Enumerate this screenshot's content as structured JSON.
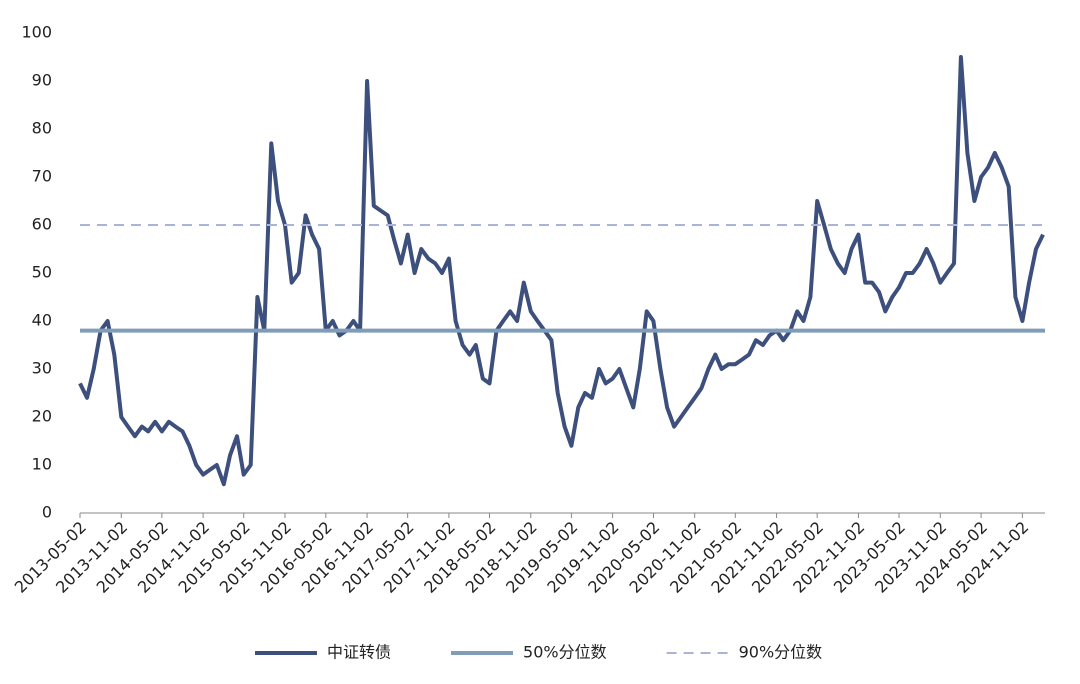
{
  "chart_data": {
    "type": "line",
    "x": [
      "2013-05-02",
      "2013-06-02",
      "2013-07-02",
      "2013-08-02",
      "2013-09-02",
      "2013-10-02",
      "2013-11-02",
      "2013-12-02",
      "2014-01-02",
      "2014-02-02",
      "2014-03-02",
      "2014-04-02",
      "2014-05-02",
      "2014-06-02",
      "2014-07-02",
      "2014-08-02",
      "2014-09-02",
      "2014-10-02",
      "2014-11-02",
      "2014-12-02",
      "2015-01-02",
      "2015-02-02",
      "2015-03-02",
      "2015-04-02",
      "2015-05-02",
      "2015-06-02",
      "2015-07-02",
      "2015-08-02",
      "2015-09-02",
      "2015-10-02",
      "2015-11-02",
      "2015-12-02",
      "2016-01-02",
      "2016-02-02",
      "2016-03-02",
      "2016-04-02",
      "2016-05-02",
      "2016-06-02",
      "2016-07-02",
      "2016-08-02",
      "2016-09-02",
      "2016-10-02",
      "2016-11-02",
      "2016-12-02",
      "2017-01-02",
      "2017-02-02",
      "2017-03-02",
      "2017-04-02",
      "2017-05-02",
      "2017-06-02",
      "2017-07-02",
      "2017-08-02",
      "2017-09-02",
      "2017-10-02",
      "2017-11-02",
      "2017-12-02",
      "2018-01-02",
      "2018-02-02",
      "2018-03-02",
      "2018-04-02",
      "2018-05-02",
      "2018-06-02",
      "2018-07-02",
      "2018-08-02",
      "2018-09-02",
      "2018-10-02",
      "2018-11-02",
      "2018-12-02",
      "2019-01-02",
      "2019-02-02",
      "2019-03-02",
      "2019-04-02",
      "2019-05-02",
      "2019-06-02",
      "2019-07-02",
      "2019-08-02",
      "2019-09-02",
      "2019-10-02",
      "2019-11-02",
      "2019-12-02",
      "2020-01-02",
      "2020-02-02",
      "2020-03-02",
      "2020-04-02",
      "2020-05-02",
      "2020-06-02",
      "2020-07-02",
      "2020-08-02",
      "2020-09-02",
      "2020-10-02",
      "2020-11-02",
      "2020-12-02",
      "2021-01-02",
      "2021-02-02",
      "2021-03-02",
      "2021-04-02",
      "2021-05-02",
      "2021-06-02",
      "2021-07-02",
      "2021-08-02",
      "2021-09-02",
      "2021-10-02",
      "2021-11-02",
      "2021-12-02",
      "2022-01-02",
      "2022-02-02",
      "2022-03-02",
      "2022-04-02",
      "2022-05-02",
      "2022-06-02",
      "2022-07-02",
      "2022-08-02",
      "2022-09-02",
      "2022-10-02",
      "2022-11-02",
      "2022-12-02",
      "2023-01-02",
      "2023-02-02",
      "2023-03-02",
      "2023-04-02",
      "2023-05-02",
      "2023-06-02",
      "2023-07-02",
      "2023-08-02",
      "2023-09-02",
      "2023-10-02",
      "2023-11-02",
      "2023-12-02",
      "2024-01-02",
      "2024-02-02",
      "2024-03-02",
      "2024-04-02",
      "2024-05-02",
      "2024-06-02",
      "2024-07-02",
      "2024-08-02",
      "2024-09-02",
      "2024-10-02",
      "2024-11-02",
      "2024-12-02",
      "2025-01-02",
      "2025-02-02"
    ],
    "series": [
      {
        "name": "中证转债",
        "color": "#3d4f7c",
        "values": [
          27,
          24,
          30,
          38,
          40,
          33,
          20,
          18,
          16,
          18,
          17,
          19,
          17,
          19,
          18,
          17,
          14,
          10,
          8,
          9,
          10,
          6,
          12,
          16,
          8,
          10,
          45,
          38,
          77,
          65,
          60,
          48,
          50,
          62,
          58,
          55,
          38,
          40,
          37,
          38,
          40,
          38,
          90,
          64,
          63,
          62,
          57,
          52,
          58,
          50,
          55,
          53,
          52,
          50,
          53,
          40,
          35,
          33,
          35,
          28,
          27,
          38,
          40,
          42,
          40,
          48,
          42,
          40,
          38,
          36,
          25,
          18,
          14,
          22,
          25,
          24,
          30,
          27,
          28,
          30,
          26,
          22,
          30,
          42,
          40,
          30,
          22,
          18,
          20,
          22,
          24,
          26,
          30,
          33,
          30,
          31,
          31,
          32,
          33,
          36,
          35,
          37,
          38,
          36,
          38,
          42,
          40,
          45,
          65,
          60,
          55,
          52,
          50,
          55,
          58,
          48,
          48,
          46,
          42,
          45,
          47,
          50,
          50,
          52,
          55,
          52,
          48,
          50,
          52,
          95,
          75,
          65,
          70,
          72,
          75,
          72,
          68,
          45,
          40,
          48,
          55,
          58
        ]
      }
    ],
    "hlines": [
      {
        "name": "50%分位数",
        "value": 38,
        "color": "#7f9cb8",
        "dash": false
      },
      {
        "name": "90%分位数",
        "value": 60,
        "color": "#a9b4d8",
        "dash": true
      }
    ],
    "xlim": [
      "2013-05-02",
      "2025-02-02"
    ],
    "xticks": [
      "2013-05-02",
      "2013-11-02",
      "2014-05-02",
      "2014-11-02",
      "2015-05-02",
      "2015-11-02",
      "2016-05-02",
      "2016-11-02",
      "2017-05-02",
      "2017-11-02",
      "2018-05-02",
      "2018-11-02",
      "2019-05-02",
      "2019-11-02",
      "2020-05-02",
      "2020-11-02",
      "2021-05-02",
      "2021-11-02",
      "2022-05-02",
      "2022-11-02",
      "2023-05-02",
      "2023-11-02",
      "2024-05-02",
      "2024-11-02"
    ],
    "ylim": [
      0,
      100
    ],
    "yticks": [
      0,
      10,
      20,
      30,
      40,
      50,
      60,
      70,
      80,
      90,
      100
    ]
  }
}
